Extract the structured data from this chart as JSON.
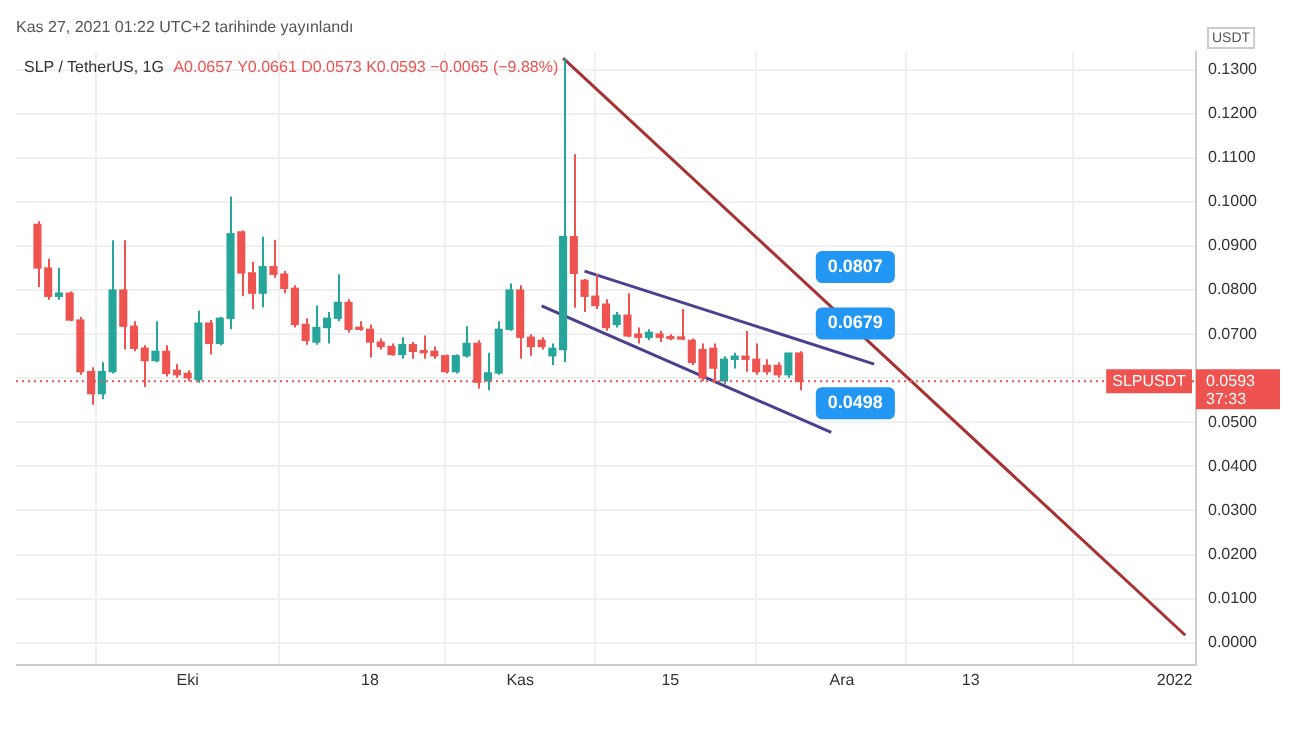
{
  "chart_data": {
    "type": "candlestick",
    "title": "SLP / TetherUS, 1G",
    "subtitle": "A0.0657 Y0.0661 D0.0573 K0.0593 −0.0065 (−9.88%)",
    "ylabel": "USDT",
    "x": [
      "2021-09-17",
      "2021-09-18",
      "2021-09-19",
      "2021-09-20",
      "2021-09-21",
      "2021-09-22",
      "2021-09-23",
      "2021-09-24",
      "2021-09-25",
      "2021-09-26",
      "2021-09-27",
      "2021-09-28",
      "2021-09-29",
      "2021-09-30",
      "2021-10-01",
      "2021-10-02",
      "2021-10-03",
      "2021-10-04",
      "2021-10-05",
      "2021-10-06",
      "2021-10-07",
      "2021-10-08",
      "2021-10-09",
      "2021-10-10",
      "2021-10-11",
      "2021-10-12",
      "2021-10-13",
      "2021-10-14",
      "2021-10-15",
      "2021-10-16",
      "2021-10-17",
      "2021-10-18",
      "2021-10-19",
      "2021-10-20",
      "2021-10-21",
      "2021-10-22",
      "2021-10-23",
      "2021-10-24",
      "2021-10-25",
      "2021-10-26",
      "2021-10-27",
      "2021-10-28",
      "2021-10-29",
      "2021-10-30",
      "2021-10-31",
      "2021-11-01",
      "2021-11-02",
      "2021-11-03",
      "2021-11-04",
      "2021-11-05",
      "2021-11-06",
      "2021-11-07",
      "2021-11-08",
      "2021-11-09",
      "2021-11-10",
      "2021-11-11",
      "2021-11-12",
      "2021-11-13",
      "2021-11-14",
      "2021-11-15",
      "2021-11-16",
      "2021-11-17",
      "2021-11-18",
      "2021-11-19",
      "2021-11-20",
      "2021-11-21",
      "2021-11-22",
      "2021-11-23",
      "2021-11-24",
      "2021-11-25",
      "2021-11-26",
      "2021-11-27"
    ],
    "ohlc": [
      [
        0.0949,
        0.0956,
        0.0807,
        0.085
      ],
      [
        0.085,
        0.0871,
        0.0778,
        0.0786
      ],
      [
        0.0786,
        0.085,
        0.0778,
        0.0793
      ],
      [
        0.0793,
        0.0797,
        0.0729,
        0.0732
      ],
      [
        0.0732,
        0.0739,
        0.0608,
        0.0615
      ],
      [
        0.0615,
        0.0625,
        0.054,
        0.0565
      ],
      [
        0.0565,
        0.0636,
        0.0553,
        0.0615
      ],
      [
        0.0615,
        0.0913,
        0.0611,
        0.08
      ],
      [
        0.08,
        0.0913,
        0.0665,
        0.0718
      ],
      [
        0.0718,
        0.0729,
        0.0661,
        0.0668
      ],
      [
        0.0668,
        0.0675,
        0.058,
        0.064
      ],
      [
        0.064,
        0.0729,
        0.0636,
        0.0661
      ],
      [
        0.0661,
        0.0675,
        0.0604,
        0.0611
      ],
      [
        0.0618,
        0.0632,
        0.0601,
        0.0608
      ],
      [
        0.0611,
        0.0618,
        0.0593,
        0.0601
      ],
      [
        0.0597,
        0.0753,
        0.059,
        0.0725
      ],
      [
        0.0725,
        0.0732,
        0.0654,
        0.0679
      ],
      [
        0.0679,
        0.0739,
        0.0675,
        0.0736
      ],
      [
        0.0736,
        0.1012,
        0.0711,
        0.0928
      ],
      [
        0.0932,
        0.0935,
        0.0786,
        0.0839
      ],
      [
        0.0839,
        0.0864,
        0.0757,
        0.0793
      ],
      [
        0.0793,
        0.0921,
        0.0761,
        0.0853
      ],
      [
        0.0853,
        0.0914,
        0.0828,
        0.0836
      ],
      [
        0.0836,
        0.0843,
        0.0793,
        0.0804
      ],
      [
        0.0804,
        0.0811,
        0.0715,
        0.0722
      ],
      [
        0.0722,
        0.0736,
        0.0676,
        0.0686
      ],
      [
        0.0682,
        0.0765,
        0.0676,
        0.0715
      ],
      [
        0.0715,
        0.075,
        0.0679,
        0.0736
      ],
      [
        0.0736,
        0.0836,
        0.0729,
        0.0772
      ],
      [
        0.0772,
        0.0779,
        0.0704,
        0.0711
      ],
      [
        0.0715,
        0.0729,
        0.0708,
        0.0711
      ],
      [
        0.0711,
        0.0722,
        0.0647,
        0.0682
      ],
      [
        0.0682,
        0.069,
        0.0665,
        0.0672
      ],
      [
        0.0672,
        0.0679,
        0.0651,
        0.0654
      ],
      [
        0.0654,
        0.0693,
        0.0644,
        0.0676
      ],
      [
        0.0676,
        0.0682,
        0.0644,
        0.0661
      ],
      [
        0.0661,
        0.0697,
        0.0644,
        0.0658
      ],
      [
        0.0661,
        0.0672,
        0.0644,
        0.0651
      ],
      [
        0.0651,
        0.0654,
        0.0611,
        0.0615
      ],
      [
        0.0615,
        0.0654,
        0.0611,
        0.0651
      ],
      [
        0.0651,
        0.0718,
        0.0647,
        0.0679
      ],
      [
        0.0679,
        0.0686,
        0.0577,
        0.0591
      ],
      [
        0.0594,
        0.0658,
        0.0573,
        0.0612
      ],
      [
        0.0612,
        0.0729,
        0.0608,
        0.0711
      ],
      [
        0.0711,
        0.0815,
        0.0708,
        0.08
      ],
      [
        0.08,
        0.0811,
        0.0644,
        0.0693
      ],
      [
        0.0693,
        0.07,
        0.0651,
        0.0672
      ],
      [
        0.0686,
        0.0693,
        0.0665,
        0.0672
      ],
      [
        0.0651,
        0.0679,
        0.063,
        0.0668
      ],
      [
        0.0665,
        0.1326,
        0.0636,
        0.0921
      ],
      [
        0.0921,
        0.1108,
        0.076,
        0.0838
      ],
      [
        0.0822,
        0.0825,
        0.075,
        0.0786
      ],
      [
        0.0786,
        0.0836,
        0.0757,
        0.0765
      ],
      [
        0.0768,
        0.0779,
        0.0708,
        0.0715
      ],
      [
        0.0722,
        0.075,
        0.0715,
        0.0743
      ],
      [
        0.0743,
        0.0793,
        0.0693,
        0.0696
      ],
      [
        0.07,
        0.0715,
        0.0679,
        0.0693
      ],
      [
        0.0693,
        0.0711,
        0.0686,
        0.0704
      ],
      [
        0.07,
        0.0707,
        0.0682,
        0.0693
      ],
      [
        0.0693,
        0.07,
        0.0686,
        0.069
      ],
      [
        0.069,
        0.0757,
        0.0686,
        0.0689
      ],
      [
        0.0686,
        0.069,
        0.063,
        0.0636
      ],
      [
        0.0665,
        0.0679,
        0.0594,
        0.0601
      ],
      [
        0.0668,
        0.0679,
        0.059,
        0.0623
      ],
      [
        0.0594,
        0.065,
        0.0587,
        0.0643
      ],
      [
        0.0643,
        0.0658,
        0.0622,
        0.065
      ],
      [
        0.065,
        0.0707,
        0.0615,
        0.0643
      ],
      [
        0.0643,
        0.0679,
        0.0608,
        0.0615
      ],
      [
        0.0629,
        0.0643,
        0.0608,
        0.0615
      ],
      [
        0.0629,
        0.0636,
        0.0601,
        0.0608
      ],
      [
        0.0608,
        0.0657,
        0.0601,
        0.0657
      ],
      [
        0.0657,
        0.0661,
        0.0573,
        0.0593
      ]
    ],
    "series": [
      {
        "type": "line",
        "color": "#a83232",
        "x": [
          "2021-11-05",
          "2022-01-02"
        ],
        "values": [
          0.1326,
          0.0017
        ]
      },
      {
        "type": "line",
        "color": "#4b3f8f",
        "x": [
          "2021-11-07",
          "2021-12-04"
        ],
        "values": [
          0.0843,
          0.0632
        ]
      },
      {
        "type": "line",
        "color": "#4b3f8f",
        "x": [
          "2021-11-03",
          "2021-11-30"
        ],
        "values": [
          0.0764,
          0.0477
        ]
      }
    ],
    "xlim": [
      "2021-09-15",
      "2022-01-03"
    ],
    "xticks": [
      {
        "value": "2021-10-01",
        "label": "Eki"
      },
      {
        "value": "2021-10-18",
        "label": "18"
      },
      {
        "value": "2021-11-01",
        "label": "Kas"
      },
      {
        "value": "2021-11-15",
        "label": "15"
      },
      {
        "value": "2021-12-01",
        "label": "Ara"
      },
      {
        "value": "2021-12-13",
        "label": "13"
      },
      {
        "value": "2022-01-01",
        "label": "2022"
      }
    ],
    "ylim": [
      -0.005,
      0.134
    ],
    "yticks": [
      {
        "value": 0,
        "label": "0.0000"
      },
      {
        "value": 0.01,
        "label": "0.0100"
      },
      {
        "value": 0.02,
        "label": "0.0200"
      },
      {
        "value": 0.03,
        "label": "0.0300"
      },
      {
        "value": 0.04,
        "label": "0.0400"
      },
      {
        "value": 0.05,
        "label": "0.0500"
      },
      {
        "value": 0.06,
        "label": null
      },
      {
        "value": 0.07,
        "label": "0.0700"
      },
      {
        "value": 0.08,
        "label": "0.0800"
      },
      {
        "value": 0.09,
        "label": "0.0900"
      },
      {
        "value": 0.1,
        "label": "0.1000"
      },
      {
        "value": 0.11,
        "label": "0.1100"
      },
      {
        "value": 0.12,
        "label": "0.1200"
      },
      {
        "value": 0.13,
        "label": "0.1300"
      }
    ],
    "grid": true,
    "ref_lines": [
      {
        "axis": "y",
        "value": 0.0593,
        "label": "SLPUSDT",
        "color": "#ef5350",
        "line_style": "dotted"
      }
    ],
    "annotations": [
      "Kas 27, 2021 01:22 UTC+2 tarihinde yayınlandı",
      "0.0593",
      "37:33",
      {
        "text": "0.0807",
        "x": "2021-11-28",
        "y": 0.0807
      },
      {
        "text": "0.0679",
        "x": "2021-11-28",
        "y": 0.0679
      },
      {
        "text": "0.0498",
        "x": "2021-11-28",
        "y": 0.0498
      }
    ]
  }
}
